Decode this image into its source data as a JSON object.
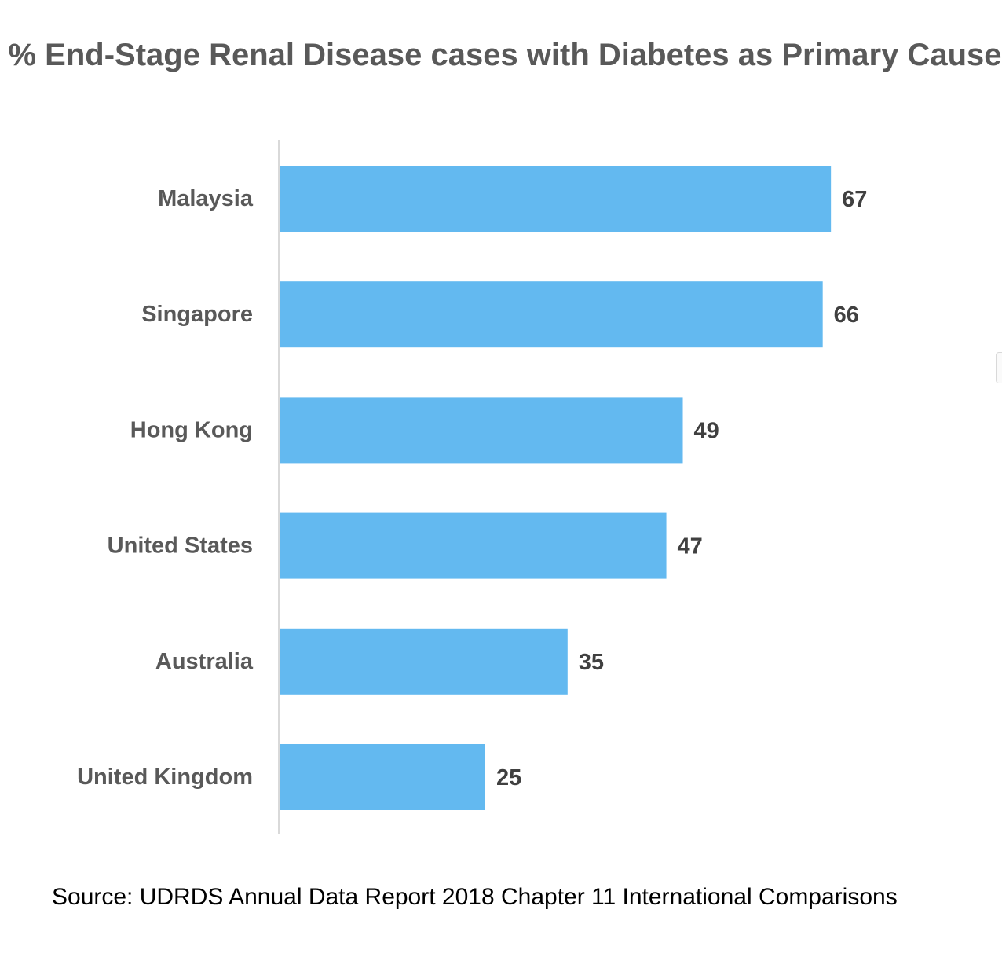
{
  "chart_data": {
    "type": "bar",
    "orientation": "horizontal",
    "title": "% End-Stage Renal Disease cases with Diabetes as Primary Cause",
    "categories": [
      "Malaysia",
      "Singapore",
      "Hong Kong",
      "United States",
      "Australia",
      "United Kingdom"
    ],
    "values": [
      67,
      66,
      49,
      47,
      35,
      25
    ],
    "data_labels": [
      "67",
      "66",
      "49",
      "47",
      "35",
      "25"
    ],
    "xlim": [
      0,
      80
    ],
    "grid": false,
    "legend": "none",
    "bar_color": "#63B9F0",
    "label_color": "#595959",
    "axis_color": "#d9d9d9"
  },
  "source_note": "Source: UDRDS Annual Data Report 2018 Chapter 11 International Comparisons"
}
